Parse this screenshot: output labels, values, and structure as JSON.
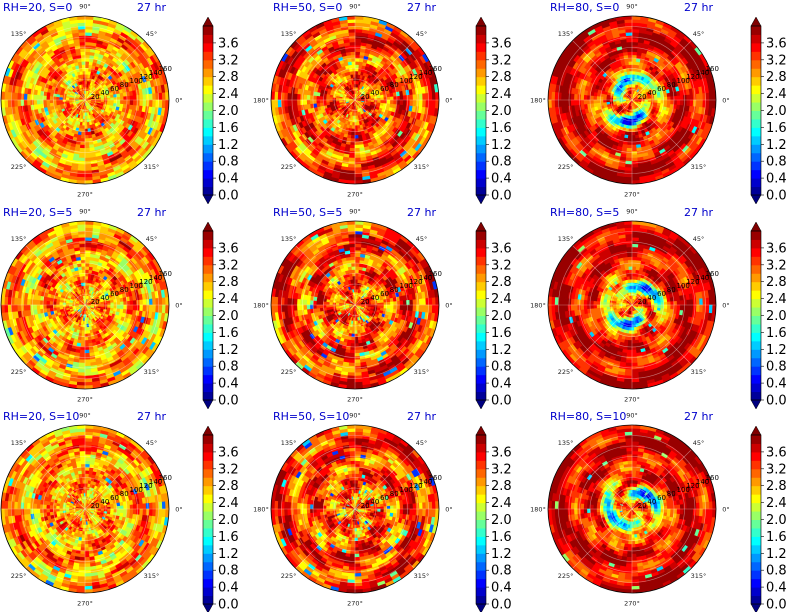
{
  "chart_data": {
    "type": "heatmap",
    "layout": "3x3 grid of polar contour plots, each with a vertical colorbar",
    "colormap": "jet",
    "colorbar": {
      "ticks": [
        "0.0",
        "0.4",
        "0.8",
        "1.2",
        "1.6",
        "2.0",
        "2.4",
        "2.8",
        "3.2",
        "3.6"
      ],
      "range": [
        0,
        4.0
      ],
      "levels": 20,
      "extend": "both"
    },
    "angle_labels": [
      "0°",
      "45°",
      "90°",
      "135°",
      "180°",
      "225°",
      "270°",
      "315°"
    ],
    "radial_labels": [
      "20",
      "40",
      "60",
      "80",
      "100",
      "120",
      "140",
      "160"
    ],
    "panels": [
      {
        "title": "RH=20, S=0",
        "time": "27 hr",
        "rh": 20,
        "s": 0
      },
      {
        "title": "RH=50, S=0",
        "time": "27 hr",
        "rh": 50,
        "s": 0
      },
      {
        "title": "RH=80, S=0",
        "time": "27 hr",
        "rh": 80,
        "s": 0
      },
      {
        "title": "RH=20, S=5",
        "time": "27 hr",
        "rh": 20,
        "s": 5
      },
      {
        "title": "RH=50, S=5",
        "time": "27 hr",
        "rh": 50,
        "s": 5
      },
      {
        "title": "RH=80, S=5",
        "time": "27 hr",
        "rh": 80,
        "s": 5
      },
      {
        "title": "RH=20, S=10",
        "time": "27 hr",
        "rh": 20,
        "s": 10
      },
      {
        "title": "RH=50, S=10",
        "time": "27 hr",
        "rh": 50,
        "s": 10
      },
      {
        "title": "RH=80, S=10",
        "time": "27 hr",
        "rh": 80,
        "s": 10
      }
    ]
  }
}
